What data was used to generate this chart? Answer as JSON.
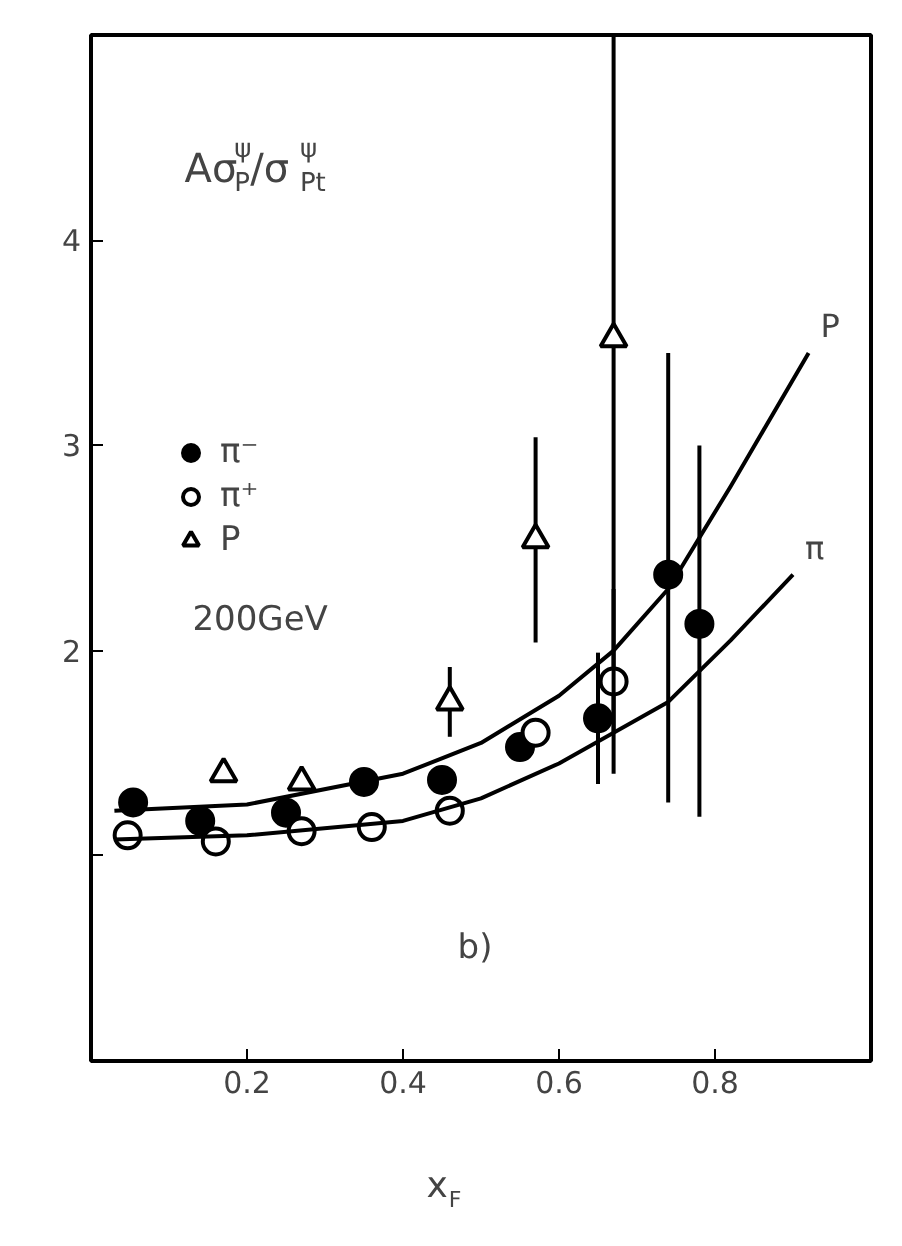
{
  "chart_data": {
    "type": "scatter",
    "xlabel": "x$_{F}$",
    "xlim": [
      0,
      1
    ],
    "ylim": [
      0,
      5
    ],
    "xticks": [
      0.2,
      0.4,
      0.6,
      0.8
    ],
    "yticks": [
      {
        "value": 1,
        "label": null
      },
      2,
      3,
      4
    ],
    "grid": false,
    "legend": "top left",
    "series": [
      {
        "name": "π⁻",
        "color": "#000000",
        "marker": "circle",
        "x": [
          0.054,
          0.14,
          0.25,
          0.35,
          0.45,
          0.55,
          0.65,
          0.74,
          0.78
        ],
        "values": [
          1.26,
          1.17,
          1.21,
          1.36,
          1.37,
          1.53,
          1.67,
          2.37,
          2.13
        ],
        "errors": [
          null,
          null,
          null,
          null,
          null,
          null,
          0.32,
          [
            1.26,
            3.45
          ],
          [
            1.19,
            3.0
          ]
        ]
      },
      {
        "name": "π⁺",
        "color": "#000000",
        "marker": "circle_open",
        "x": [
          0.047,
          0.16,
          0.27,
          0.36,
          0.46,
          0.57,
          0.67
        ],
        "values": [
          1.1,
          1.07,
          1.12,
          1.14,
          1.22,
          1.6,
          1.85
        ],
        "errors": [
          null,
          null,
          null,
          null,
          null,
          null,
          0.45
        ]
      },
      {
        "name": "P",
        "color": "#000000",
        "marker": "triangle_open",
        "x": [
          0.17,
          0.27,
          0.46,
          0.57,
          0.67
        ],
        "values": [
          1.4,
          1.36,
          1.75,
          2.54,
          3.52
        ],
        "errors": [
          null,
          null,
          0.17,
          0.5,
          [
            1.6,
            5.0
          ]
        ]
      },
      {
        "name": "P",
        "type": "line",
        "color": "#000000",
        "x": [
          0.03,
          0.2,
          0.4,
          0.5,
          0.6,
          0.67,
          0.74,
          0.82,
          0.92
        ],
        "values": [
          1.22,
          1.25,
          1.4,
          1.55,
          1.78,
          2.0,
          2.3,
          2.8,
          3.45
        ]
      },
      {
        "name": "π",
        "type": "line",
        "color": "#000000",
        "x": [
          0.03,
          0.2,
          0.4,
          0.5,
          0.6,
          0.74,
          0.82,
          0.9
        ],
        "values": [
          1.08,
          1.1,
          1.17,
          1.28,
          1.45,
          1.75,
          2.05,
          2.37
        ]
      }
    ],
    "annotations": [
      "Aσ$^{ψ}$$_{P}$/σ$^{ψ}$$_{Pt}$",
      "200GeV",
      "b)"
    ]
  }
}
